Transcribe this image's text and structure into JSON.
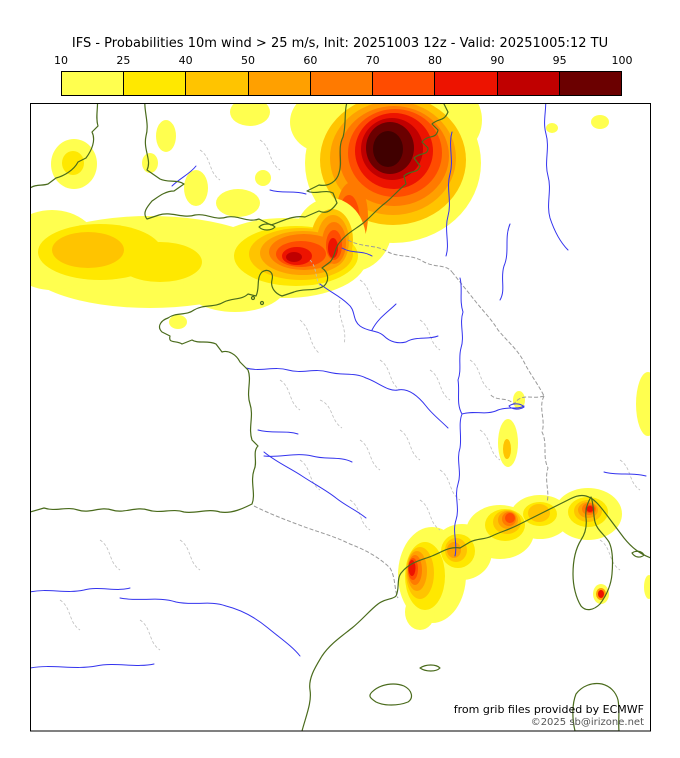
{
  "title": "IFS - Probabilities 10m wind > 25 m/s, Init: 20251003 12z - Valid: 20251005:12 TU",
  "colorbar": {
    "unit_values": [
      "10",
      "25",
      "40",
      "50",
      "60",
      "70",
      "80",
      "90",
      "95",
      "100"
    ],
    "segment_colors": [
      "#ffff4f",
      "#ffe800",
      "#ffc400",
      "#ffa000",
      "#ff7a00",
      "#ff4c00",
      "#ed1300",
      "#c00000",
      "#6b0000"
    ]
  },
  "map": {
    "attribution": "from grib files provided by ECMWF",
    "copyright": "©2025 sb@irizone.net",
    "colors": {
      "coastline": "#4a6b1c",
      "rivers": "#3333ee",
      "admin_boundaries": "#bdbdbd",
      "country_borders": "#9a9a9a",
      "frame": "#000000",
      "background": "#ffffff",
      "darkest_core": "#400000"
    }
  }
}
